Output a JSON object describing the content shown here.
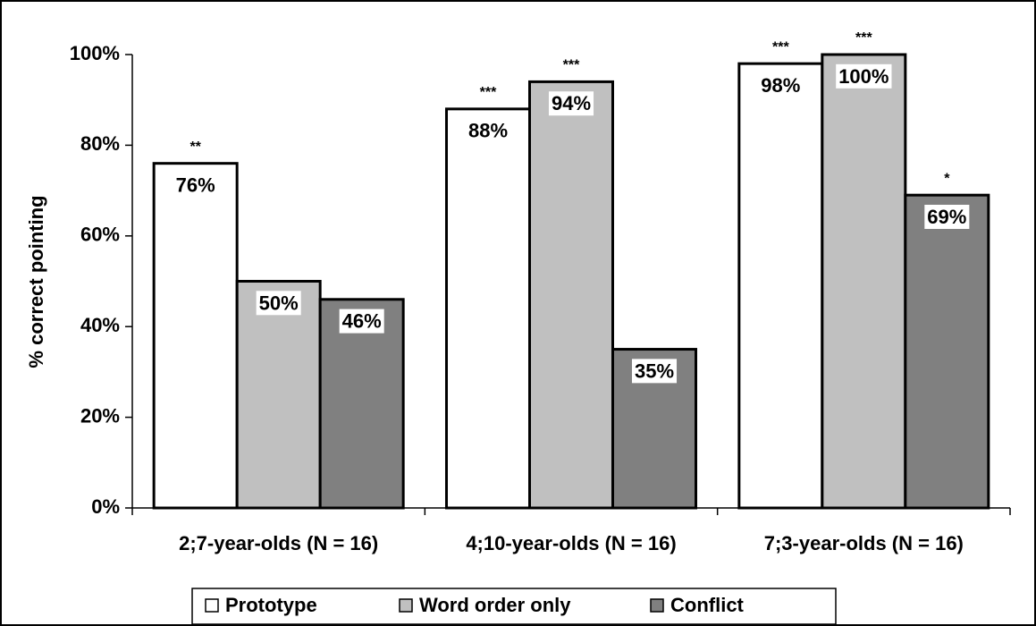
{
  "chart_data": {
    "type": "bar",
    "y_label": "% correct pointing",
    "categories": [
      "2;7-year-olds (N = 16)",
      "4;10-year-olds (N = 16)",
      "7;3-year-olds (N = 16)"
    ],
    "series": [
      {
        "name": "Prototype",
        "color": "#ffffff",
        "values": [
          76,
          88,
          98
        ],
        "value_labels": [
          "76%",
          "88%",
          "98%"
        ],
        "significance": [
          "**",
          "***",
          "***"
        ]
      },
      {
        "name": "Word order only",
        "color": "#c0c0c0",
        "values": [
          50,
          94,
          100
        ],
        "value_labels": [
          "50%",
          "94%",
          "100%"
        ],
        "significance": [
          null,
          "***",
          "***"
        ]
      },
      {
        "name": "Conflict",
        "color": "#808080",
        "values": [
          46,
          35,
          69
        ],
        "value_labels": [
          "46%",
          "35%",
          "69%"
        ],
        "significance": [
          null,
          null,
          "*"
        ]
      }
    ],
    "ylim": [
      0,
      100
    ],
    "yticks": [
      {
        "value": 0,
        "label": "0%"
      },
      {
        "value": 20,
        "label": "20%"
      },
      {
        "value": 40,
        "label": "40%"
      },
      {
        "value": 60,
        "label": "60%"
      },
      {
        "value": 80,
        "label": "80%"
      },
      {
        "value": 100,
        "label": "100%"
      }
    ],
    "legend": "bottom"
  }
}
